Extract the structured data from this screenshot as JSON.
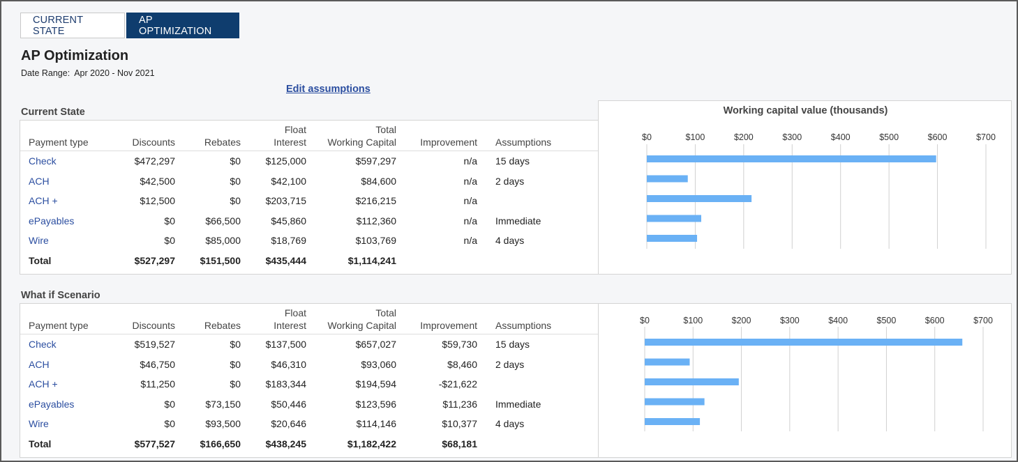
{
  "tabs": [
    {
      "label": "CURRENT STATE",
      "active": false
    },
    {
      "label": "AP OPTIMIZATION",
      "active": true
    }
  ],
  "page_title": "AP Optimization",
  "date_range": {
    "label": "Date Range:",
    "value": "Apr 2020 - Nov 2021"
  },
  "edit_link": "Edit assumptions",
  "columns": {
    "payment_type": "Payment type",
    "discounts": "Discounts",
    "rebates": "Rebates",
    "float_interest_1": "Float",
    "float_interest_2": "Interest",
    "total_wc_1": "Total",
    "total_wc_2": "Working Capital",
    "improvement": "Improvement",
    "assumptions": "Assumptions"
  },
  "current_state": {
    "title": "Current State",
    "rows": [
      {
        "type": "Check",
        "discounts": "$472,297",
        "rebates": "$0",
        "float": "$125,000",
        "total": "$597,297",
        "improvement": "n/a",
        "assumption": "15 days"
      },
      {
        "type": "ACH",
        "discounts": "$42,500",
        "rebates": "$0",
        "float": "$42,100",
        "total": "$84,600",
        "improvement": "n/a",
        "assumption": "2 days"
      },
      {
        "type": "ACH +",
        "discounts": "$12,500",
        "rebates": "$0",
        "float": "$203,715",
        "total": "$216,215",
        "improvement": "n/a",
        "assumption": ""
      },
      {
        "type": "ePayables",
        "discounts": "$0",
        "rebates": "$66,500",
        "float": "$45,860",
        "total": "$112,360",
        "improvement": "n/a",
        "assumption": "Immediate"
      },
      {
        "type": "Wire",
        "discounts": "$0",
        "rebates": "$85,000",
        "float": "$18,769",
        "total": "$103,769",
        "improvement": "n/a",
        "assumption": "4 days"
      }
    ],
    "total": {
      "type": "Total",
      "discounts": "$527,297",
      "rebates": "$151,500",
      "float": "$435,444",
      "total": "$1,114,241",
      "improvement": "",
      "assumption": ""
    }
  },
  "what_if": {
    "title": "What if Scenario",
    "rows": [
      {
        "type": "Check",
        "discounts": "$519,527",
        "rebates": "$0",
        "float": "$137,500",
        "total": "$657,027",
        "improvement": "$59,730",
        "assumption": "15 days"
      },
      {
        "type": "ACH",
        "discounts": "$46,750",
        "rebates": "$0",
        "float": "$46,310",
        "total": "$93,060",
        "improvement": "$8,460",
        "assumption": "2 days"
      },
      {
        "type": "ACH +",
        "discounts": "$11,250",
        "rebates": "$0",
        "float": "$183,344",
        "total": "$194,594",
        "improvement": "-$21,622",
        "assumption": ""
      },
      {
        "type": "ePayables",
        "discounts": "$0",
        "rebates": "$73,150",
        "float": "$50,446",
        "total": "$123,596",
        "improvement": "$11,236",
        "assumption": "Immediate"
      },
      {
        "type": "Wire",
        "discounts": "$0",
        "rebates": "$93,500",
        "float": "$20,646",
        "total": "$114,146",
        "improvement": "$10,377",
        "assumption": "4 days"
      }
    ],
    "total": {
      "type": "Total",
      "discounts": "$577,527",
      "rebates": "$166,650",
      "float": "$438,245",
      "total": "$1,182,422",
      "improvement": "$68,181",
      "assumption": ""
    }
  },
  "colors": {
    "bar": "#6ab1f5",
    "tab_active": "#0f3d6e",
    "link": "#2b4ea0",
    "grid": "#d0d0d0"
  },
  "chart_data": [
    {
      "type": "bar",
      "orientation": "horizontal",
      "title": "Working capital value (thousands)",
      "categories": [
        "Check",
        "ACH",
        "ACH +",
        "ePayables",
        "Wire"
      ],
      "values": [
        597.297,
        84.6,
        216.215,
        112.36,
        103.769
      ],
      "xlim": [
        0,
        700
      ],
      "ticks": [
        "$0",
        "$100",
        "$200",
        "$300",
        "$400",
        "$500",
        "$600",
        "$700"
      ],
      "grid": true
    },
    {
      "type": "bar",
      "orientation": "horizontal",
      "title": "",
      "categories": [
        "Check",
        "ACH",
        "ACH +",
        "ePayables",
        "Wire"
      ],
      "values": [
        657.027,
        93.06,
        194.594,
        123.596,
        114.146
      ],
      "xlim": [
        0,
        700
      ],
      "ticks": [
        "$0",
        "$100",
        "$200",
        "$300",
        "$400",
        "$500",
        "$600",
        "$700"
      ],
      "grid": true
    }
  ]
}
